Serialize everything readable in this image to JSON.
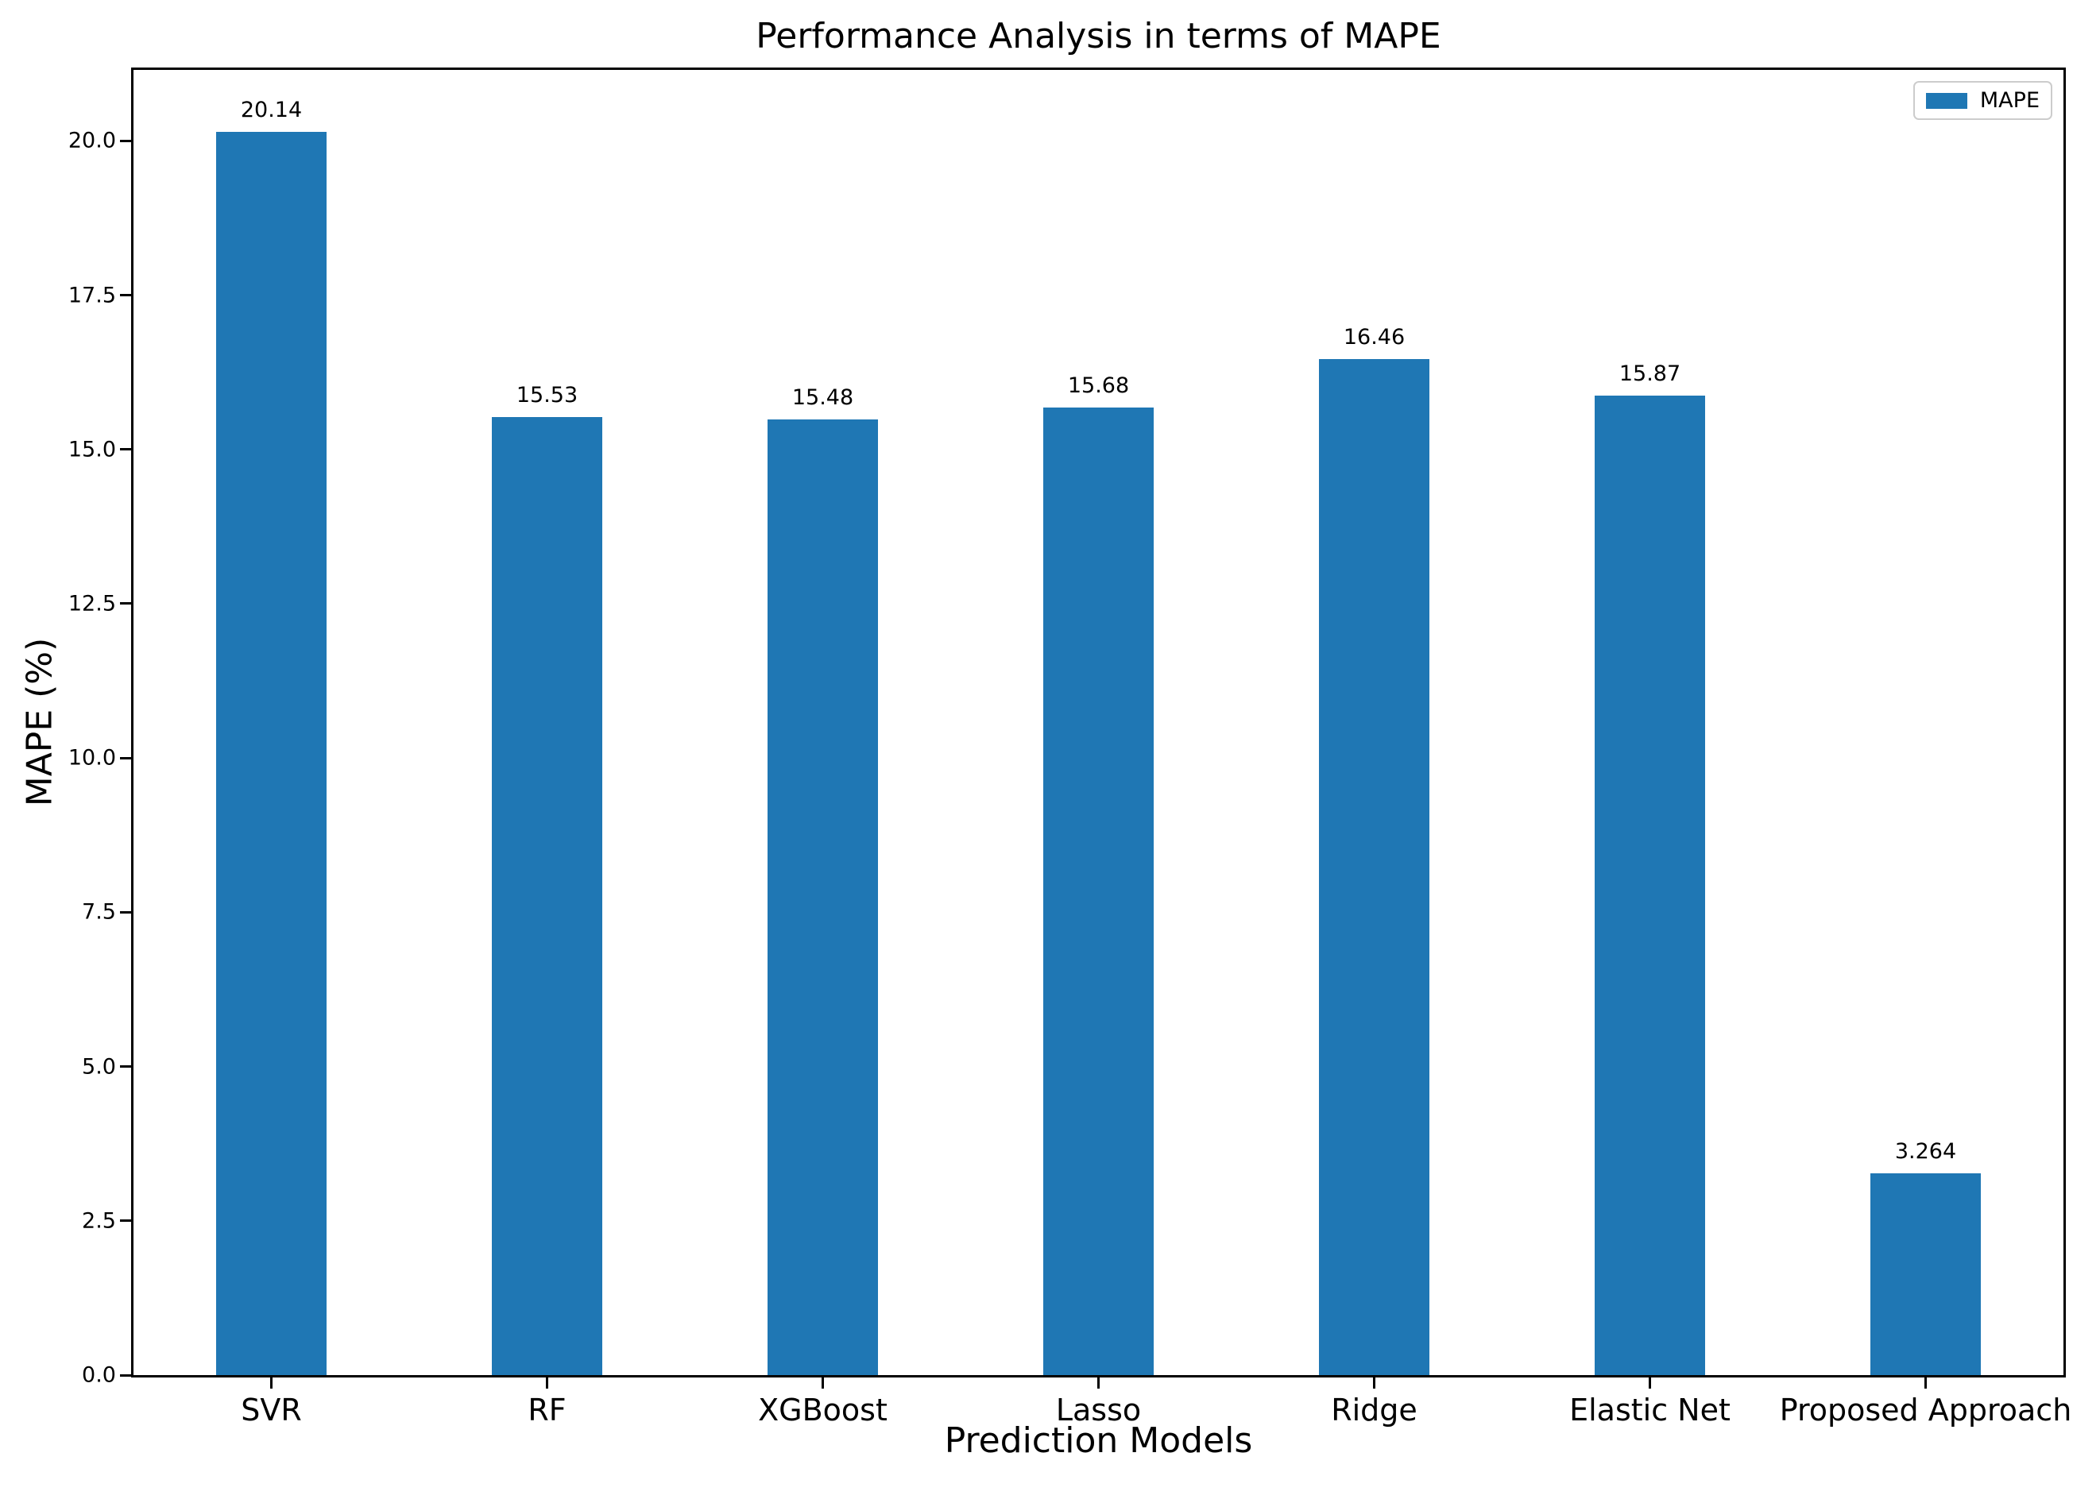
{
  "figure": {
    "background_color": "#ffffff",
    "text_color": "#000000"
  },
  "chart_data": {
    "type": "bar",
    "title": "Performance Analysis in terms of MAPE",
    "xlabel": "Prediction Models",
    "ylabel": "MAPE (%)",
    "categories": [
      "SVR",
      "RF",
      "XGBoost",
      "Lasso",
      "Ridge",
      "Elastic Net",
      "Proposed Approach"
    ],
    "series": [
      {
        "name": "MAPE",
        "color": "#1f77b4",
        "values": [
          20.14,
          15.53,
          15.48,
          15.68,
          16.46,
          15.87,
          3.264
        ]
      }
    ],
    "value_labels": [
      "20.14",
      "15.53",
      "15.48",
      "15.68",
      "16.46",
      "15.87",
      "3.264"
    ],
    "ylim": [
      0,
      21.15
    ],
    "yticks": [
      0.0,
      2.5,
      5.0,
      7.5,
      10.0,
      12.5,
      15.0,
      17.5,
      20.0
    ],
    "ytick_labels": [
      "0.0",
      "2.5",
      "5.0",
      "7.5",
      "10.0",
      "12.5",
      "15.0",
      "17.5",
      "20.0"
    ],
    "grid": false,
    "bar_width_fraction": 0.4,
    "legend": {
      "position": "upper right",
      "entries": [
        {
          "label": "MAPE",
          "color": "#1f77b4"
        }
      ]
    }
  }
}
